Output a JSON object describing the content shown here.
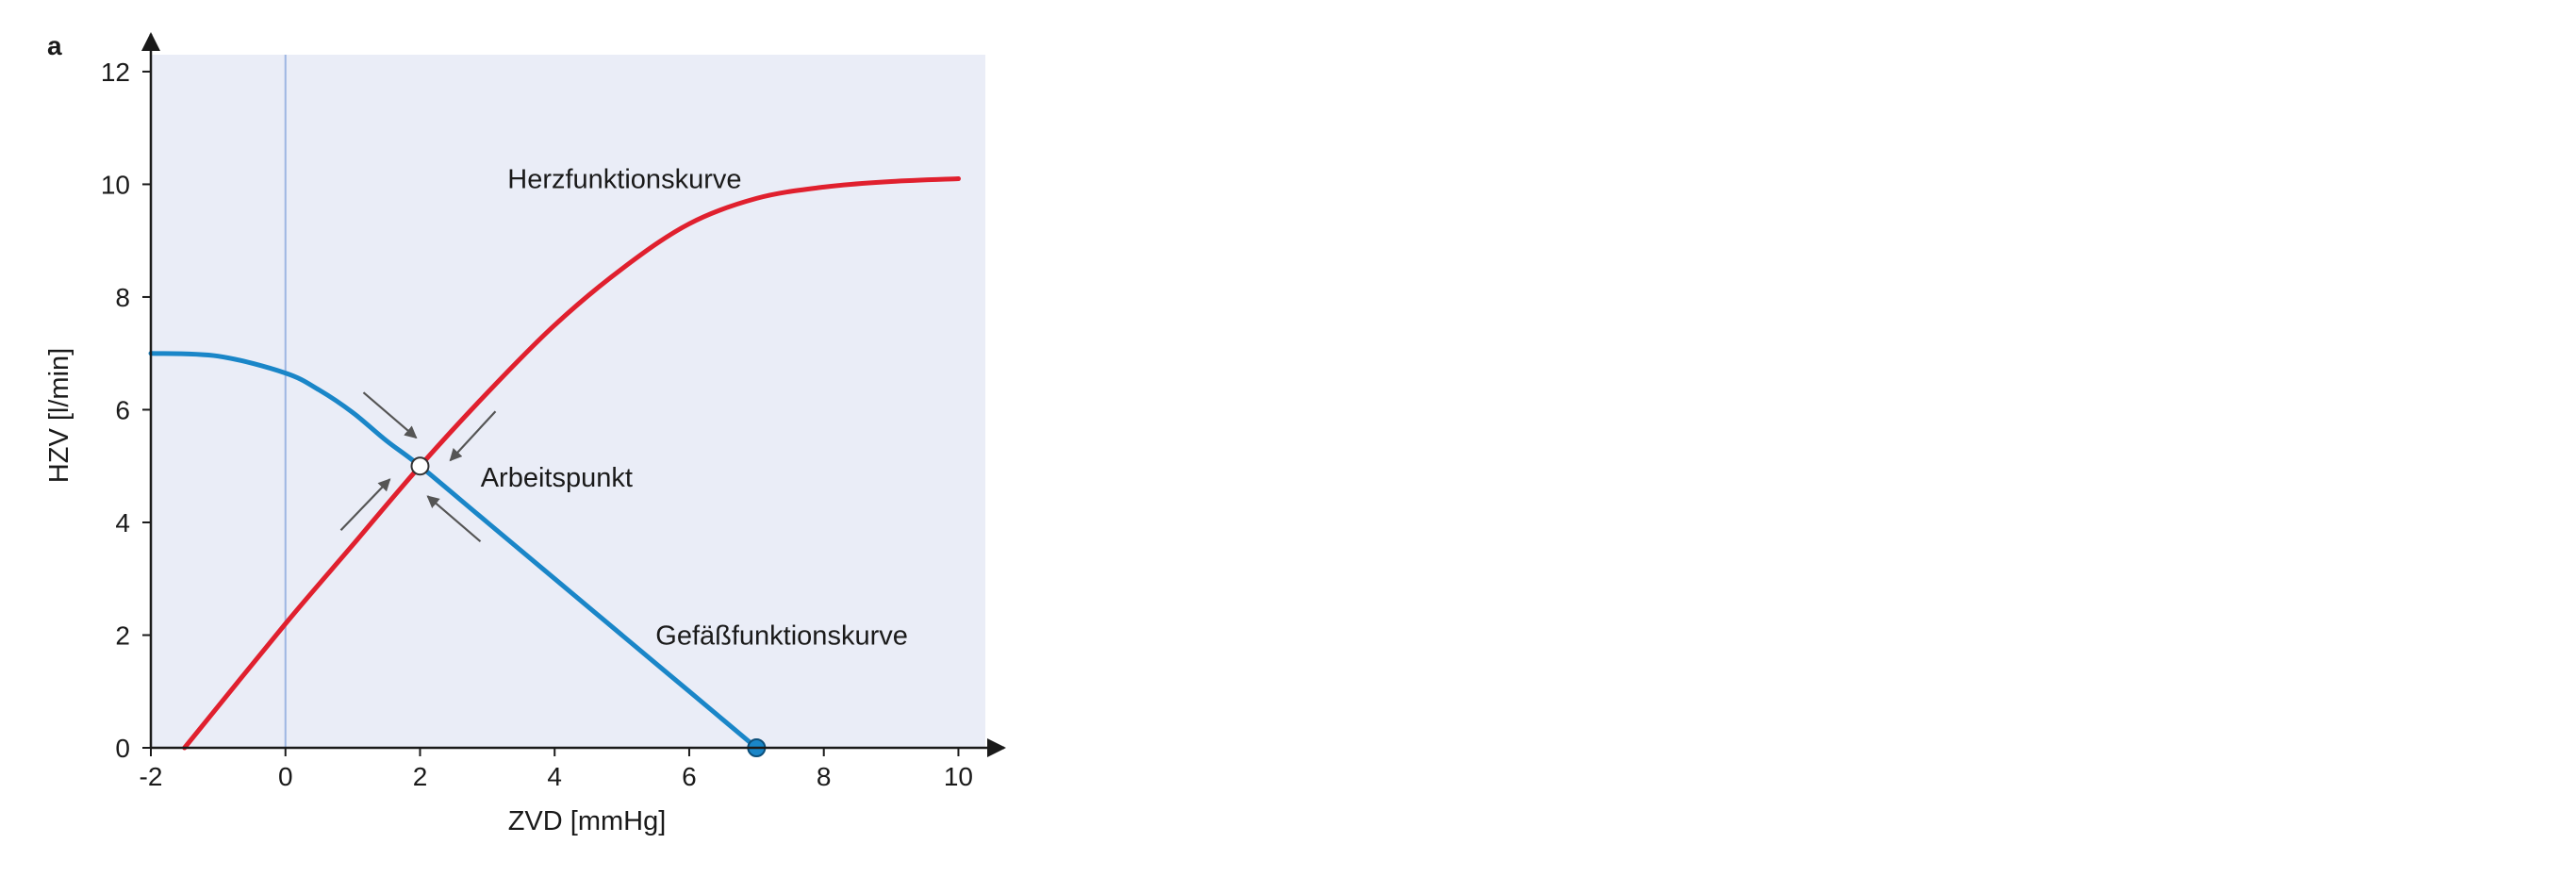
{
  "chart_data": {
    "type": "line",
    "panel_label": "a",
    "xlabel": "ZVD [mmHg]",
    "ylabel": "HZV [l/min]",
    "xlim": [
      -2,
      10.4
    ],
    "ylim": [
      0,
      12.3
    ],
    "x_ticks": [
      -2,
      0,
      2,
      4,
      6,
      8,
      10
    ],
    "y_ticks": [
      0,
      2,
      4,
      6,
      8,
      10,
      12
    ],
    "background": "#eaedf7",
    "reference_line_x": 0,
    "series": [
      {
        "name": "Herzfunktionskurve",
        "color": "#e0202e",
        "x": [
          -1.5,
          0,
          1,
          2,
          3,
          4,
          5,
          6,
          7,
          8,
          9,
          10
        ],
        "y": [
          0,
          2.2,
          3.6,
          5.0,
          6.3,
          7.5,
          8.5,
          9.3,
          9.75,
          9.95,
          10.05,
          10.1
        ]
      },
      {
        "name": "Gefäßfunktionskurve",
        "color": "#1a86c8",
        "x": [
          -2,
          -1,
          0,
          0.5,
          1,
          1.5,
          2,
          3,
          4,
          5,
          6,
          7
        ],
        "y": [
          7.0,
          6.95,
          6.65,
          6.35,
          5.95,
          5.45,
          5.0,
          4.0,
          3.0,
          2.0,
          1.0,
          0
        ]
      }
    ],
    "points": [
      {
        "name": "Arbeitspunkt",
        "x": 2,
        "y": 5,
        "fill": "#ffffff"
      },
      {
        "name": "mean-filling-pressure",
        "x": 7,
        "y": 0,
        "fill": "#1a86c8"
      }
    ],
    "annotations": [
      {
        "text": "Herzfunktionskurve",
        "x": 3.3,
        "y": 10.1
      },
      {
        "text": "Arbeitspunkt",
        "x": 2.9,
        "y": 4.8
      },
      {
        "text": "Gefäßfunktionskurve",
        "x": 5.5,
        "y": 2.0
      }
    ]
  }
}
